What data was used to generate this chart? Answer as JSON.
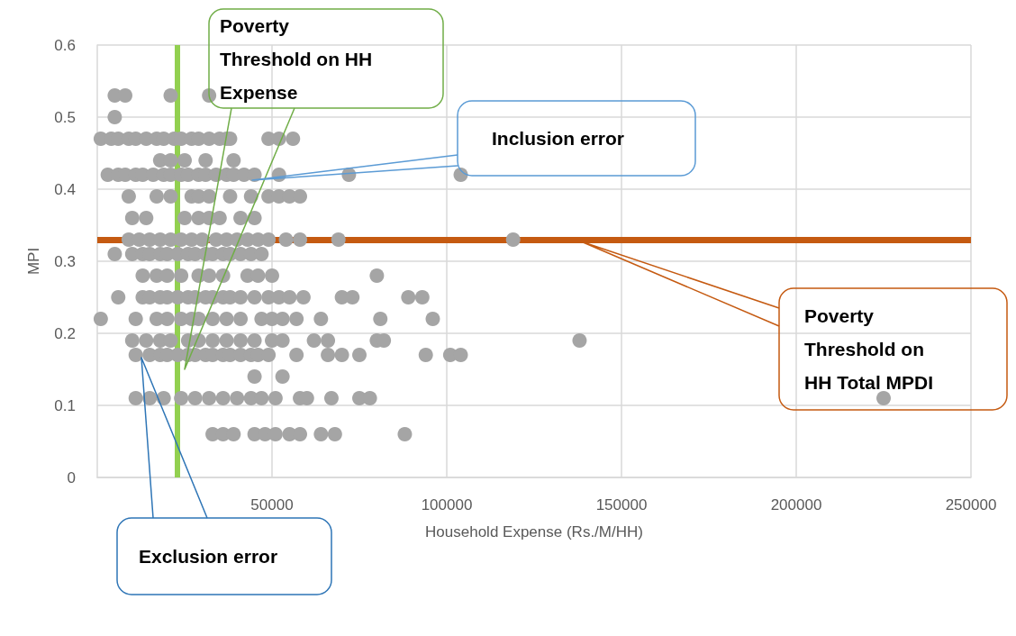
{
  "chart_data": {
    "type": "scatter",
    "xlabel": "Household Expense (Rs./M/HH)",
    "ylabel": "MPI",
    "x": [
      5000,
      8000,
      21000,
      32000,
      5000,
      1000,
      4000,
      6000,
      9000,
      11000,
      14000,
      17000,
      19000,
      22000,
      24000,
      27000,
      29000,
      32000,
      35000,
      37000,
      38000,
      49000,
      52000,
      56000,
      18000,
      21000,
      25000,
      31000,
      39000,
      3000,
      6000,
      8000,
      11000,
      13000,
      16000,
      19000,
      21000,
      24000,
      26000,
      29000,
      31000,
      34000,
      37000,
      39000,
      42000,
      45000,
      52000,
      72000,
      104000,
      9000,
      17000,
      21000,
      27000,
      29000,
      32000,
      38000,
      44000,
      49000,
      52000,
      55000,
      58000,
      10000,
      14000,
      25000,
      29000,
      32000,
      35000,
      41000,
      45000,
      9000,
      12000,
      15000,
      18000,
      21000,
      24000,
      27000,
      30000,
      34000,
      37000,
      40000,
      43000,
      46000,
      49000,
      54000,
      58000,
      69000,
      119000,
      5000,
      10000,
      13000,
      15000,
      18000,
      20000,
      23000,
      26000,
      28000,
      31000,
      33000,
      36000,
      38000,
      41000,
      44000,
      47000,
      13000,
      17000,
      20000,
      24000,
      29000,
      32000,
      36000,
      43000,
      46000,
      50000,
      80000,
      6000,
      13000,
      15000,
      18000,
      20000,
      23000,
      26000,
      28000,
      31000,
      33000,
      36000,
      38000,
      41000,
      45000,
      49000,
      52000,
      55000,
      59000,
      70000,
      73000,
      89000,
      93000,
      1000,
      11000,
      17000,
      20000,
      24000,
      27000,
      29000,
      33000,
      37000,
      41000,
      47000,
      50000,
      53000,
      57000,
      64000,
      81000,
      96000,
      10000,
      14000,
      18000,
      21000,
      26000,
      29000,
      33000,
      37000,
      41000,
      45000,
      50000,
      53000,
      62000,
      66000,
      80000,
      82000,
      138000,
      11000,
      15000,
      18000,
      20000,
      23000,
      26000,
      28000,
      31000,
      33000,
      36000,
      38000,
      41000,
      44000,
      46000,
      49000,
      57000,
      66000,
      70000,
      75000,
      94000,
      101000,
      104000,
      45000,
      53000,
      11000,
      15000,
      19000,
      24000,
      28000,
      32000,
      36000,
      40000,
      44000,
      47000,
      51000,
      58000,
      60000,
      67000,
      75000,
      78000,
      225000,
      33000,
      36000,
      39000,
      45000,
      48000,
      51000,
      55000,
      58000,
      64000,
      68000,
      88000
    ],
    "values": [
      0.53,
      0.53,
      0.53,
      0.53,
      0.5,
      0.47,
      0.47,
      0.47,
      0.47,
      0.47,
      0.47,
      0.47,
      0.47,
      0.47,
      0.47,
      0.47,
      0.47,
      0.47,
      0.47,
      0.47,
      0.47,
      0.47,
      0.47,
      0.47,
      0.44,
      0.44,
      0.44,
      0.44,
      0.44,
      0.42,
      0.42,
      0.42,
      0.42,
      0.42,
      0.42,
      0.42,
      0.42,
      0.42,
      0.42,
      0.42,
      0.42,
      0.42,
      0.42,
      0.42,
      0.42,
      0.42,
      0.42,
      0.42,
      0.42,
      0.39,
      0.39,
      0.39,
      0.39,
      0.39,
      0.39,
      0.39,
      0.39,
      0.39,
      0.39,
      0.39,
      0.39,
      0.36,
      0.36,
      0.36,
      0.36,
      0.36,
      0.36,
      0.36,
      0.36,
      0.33,
      0.33,
      0.33,
      0.33,
      0.33,
      0.33,
      0.33,
      0.33,
      0.33,
      0.33,
      0.33,
      0.33,
      0.33,
      0.33,
      0.33,
      0.33,
      0.33,
      0.33,
      0.31,
      0.31,
      0.31,
      0.31,
      0.31,
      0.31,
      0.31,
      0.31,
      0.31,
      0.31,
      0.31,
      0.31,
      0.31,
      0.31,
      0.31,
      0.31,
      0.28,
      0.28,
      0.28,
      0.28,
      0.28,
      0.28,
      0.28,
      0.28,
      0.28,
      0.28,
      0.28,
      0.25,
      0.25,
      0.25,
      0.25,
      0.25,
      0.25,
      0.25,
      0.25,
      0.25,
      0.25,
      0.25,
      0.25,
      0.25,
      0.25,
      0.25,
      0.25,
      0.25,
      0.25,
      0.25,
      0.25,
      0.25,
      0.25,
      0.22,
      0.22,
      0.22,
      0.22,
      0.22,
      0.22,
      0.22,
      0.22,
      0.22,
      0.22,
      0.22,
      0.22,
      0.22,
      0.22,
      0.22,
      0.22,
      0.22,
      0.19,
      0.19,
      0.19,
      0.19,
      0.19,
      0.19,
      0.19,
      0.19,
      0.19,
      0.19,
      0.19,
      0.19,
      0.19,
      0.19,
      0.19,
      0.19,
      0.19,
      0.17,
      0.17,
      0.17,
      0.17,
      0.17,
      0.17,
      0.17,
      0.17,
      0.17,
      0.17,
      0.17,
      0.17,
      0.17,
      0.17,
      0.17,
      0.17,
      0.17,
      0.17,
      0.17,
      0.17,
      0.17,
      0.17,
      0.14,
      0.14,
      0.11,
      0.11,
      0.11,
      0.11,
      0.11,
      0.11,
      0.11,
      0.11,
      0.11,
      0.11,
      0.11,
      0.11,
      0.11,
      0.11,
      0.11,
      0.11,
      0.11,
      0.06,
      0.06,
      0.06,
      0.06,
      0.06,
      0.06,
      0.06,
      0.06,
      0.06,
      0.06,
      0.06
    ],
    "color": "#a5a5a5",
    "marker": "circle",
    "xlim": [
      0,
      250000
    ],
    "xticks": [
      50000,
      100000,
      150000,
      200000,
      250000
    ],
    "ylim": [
      0,
      0.6
    ],
    "yticks": [
      0,
      0.1,
      0.2,
      0.3,
      0.4,
      0.5,
      0.6
    ],
    "grid": true,
    "ref_lines": [
      {
        "axis": "x",
        "value": 23000,
        "color": "#92d050"
      },
      {
        "axis": "y",
        "value": 0.33,
        "color": "#c55a11"
      }
    ],
    "annotations": [
      "Poverty Threshold on HH Expense",
      "Inclusion error",
      "Poverty Threshold on HH Total MPDI",
      "Exclusion error"
    ]
  }
}
